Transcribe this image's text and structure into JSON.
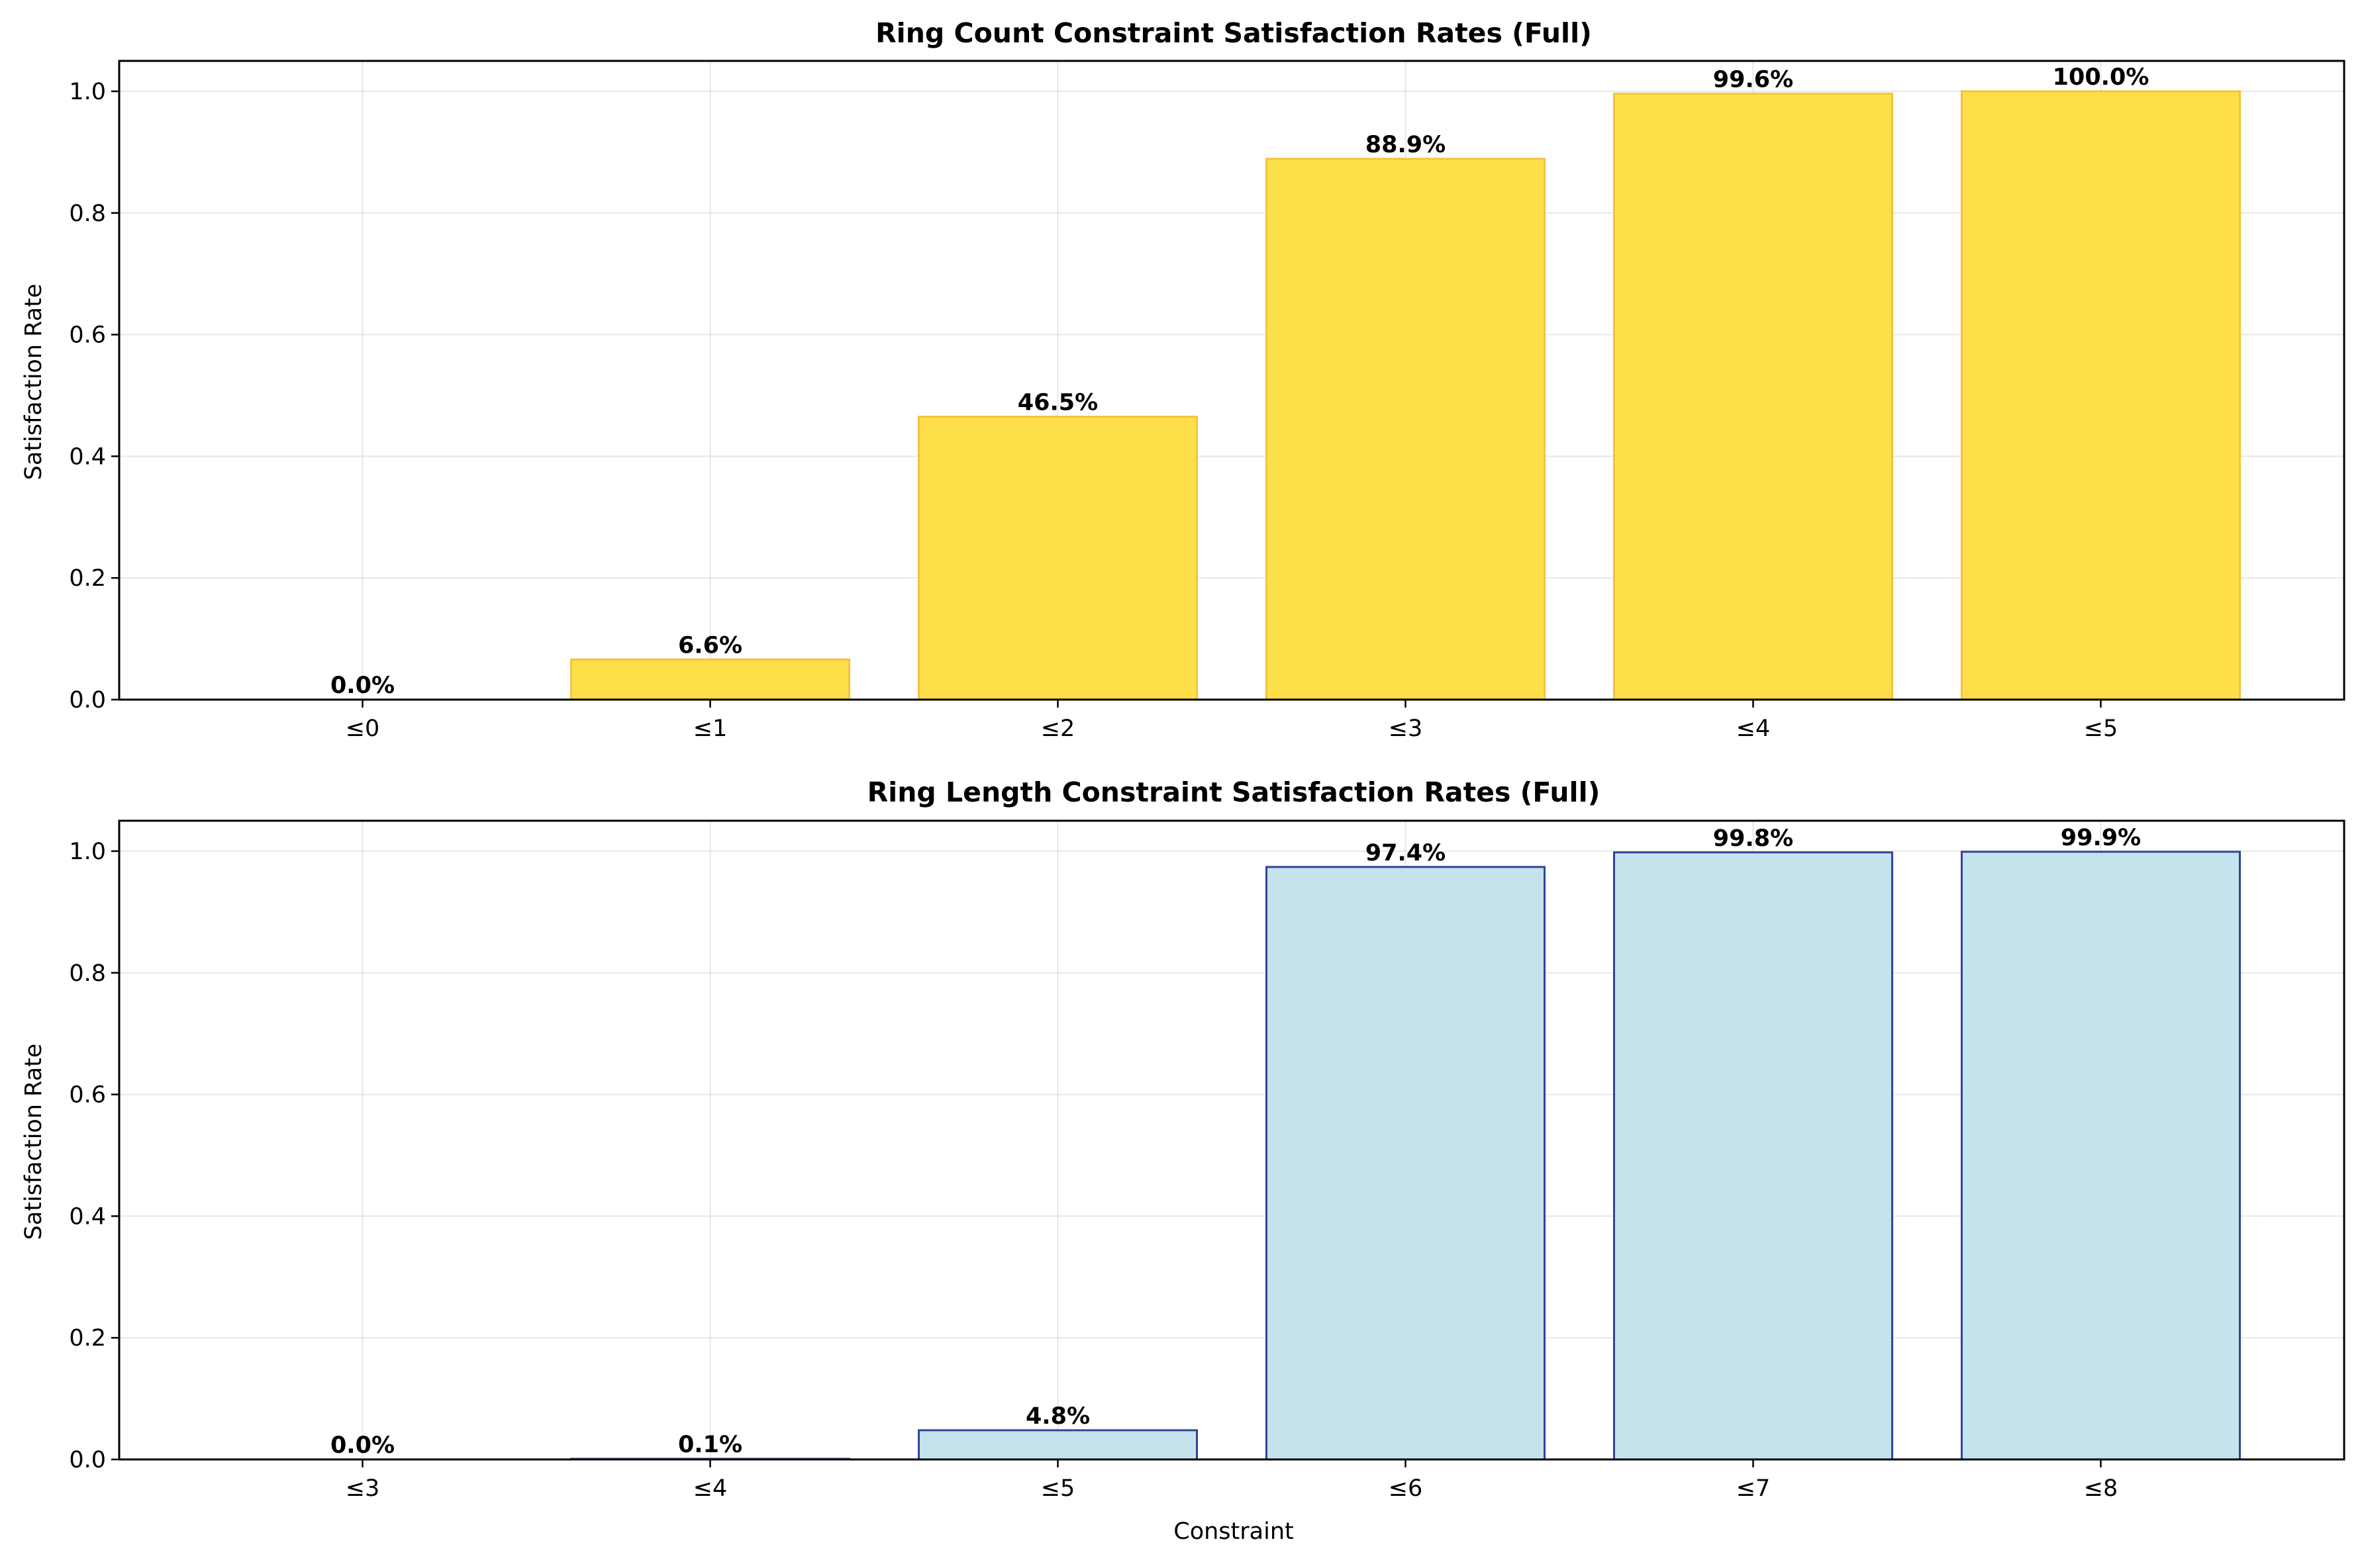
{
  "chart_data": [
    {
      "type": "bar",
      "title": "Ring Count Constraint Satisfaction Rates (Full)",
      "xlabel": "",
      "ylabel": "Satisfaction Rate",
      "categories": [
        "≤0",
        "≤1",
        "≤2",
        "≤3",
        "≤4",
        "≤5"
      ],
      "values": [
        0.0,
        0.066,
        0.465,
        0.889,
        0.996,
        1.0
      ],
      "data_labels": [
        "0.0%",
        "6.6%",
        "46.5%",
        "88.9%",
        "99.6%",
        "100.0%"
      ],
      "ylim": [
        0,
        1.05
      ],
      "yticks": [
        0.0,
        0.2,
        0.4,
        0.6,
        0.8,
        1.0
      ],
      "ytick_labels": [
        "0.0",
        "0.2",
        "0.4",
        "0.6",
        "0.8",
        "1.0"
      ],
      "grid": true,
      "bar_color": "#ffe04b",
      "edge_color": "#f5c23c"
    },
    {
      "type": "bar",
      "title": "Ring Length Constraint Satisfaction Rates (Full)",
      "xlabel": "Constraint",
      "ylabel": "Satisfaction Rate",
      "categories": [
        "≤3",
        "≤4",
        "≤5",
        "≤6",
        "≤7",
        "≤8"
      ],
      "values": [
        0.0,
        0.001,
        0.048,
        0.974,
        0.998,
        0.999
      ],
      "data_labels": [
        "0.0%",
        "0.1%",
        "4.8%",
        "97.4%",
        "99.8%",
        "99.9%"
      ],
      "ylim": [
        0,
        1.05
      ],
      "yticks": [
        0.0,
        0.2,
        0.4,
        0.6,
        0.8,
        1.0
      ],
      "ytick_labels": [
        "0.0",
        "0.2",
        "0.4",
        "0.6",
        "0.8",
        "1.0"
      ],
      "grid": true,
      "bar_color": "#c5e3ec",
      "edge_color": "#33439a"
    }
  ]
}
